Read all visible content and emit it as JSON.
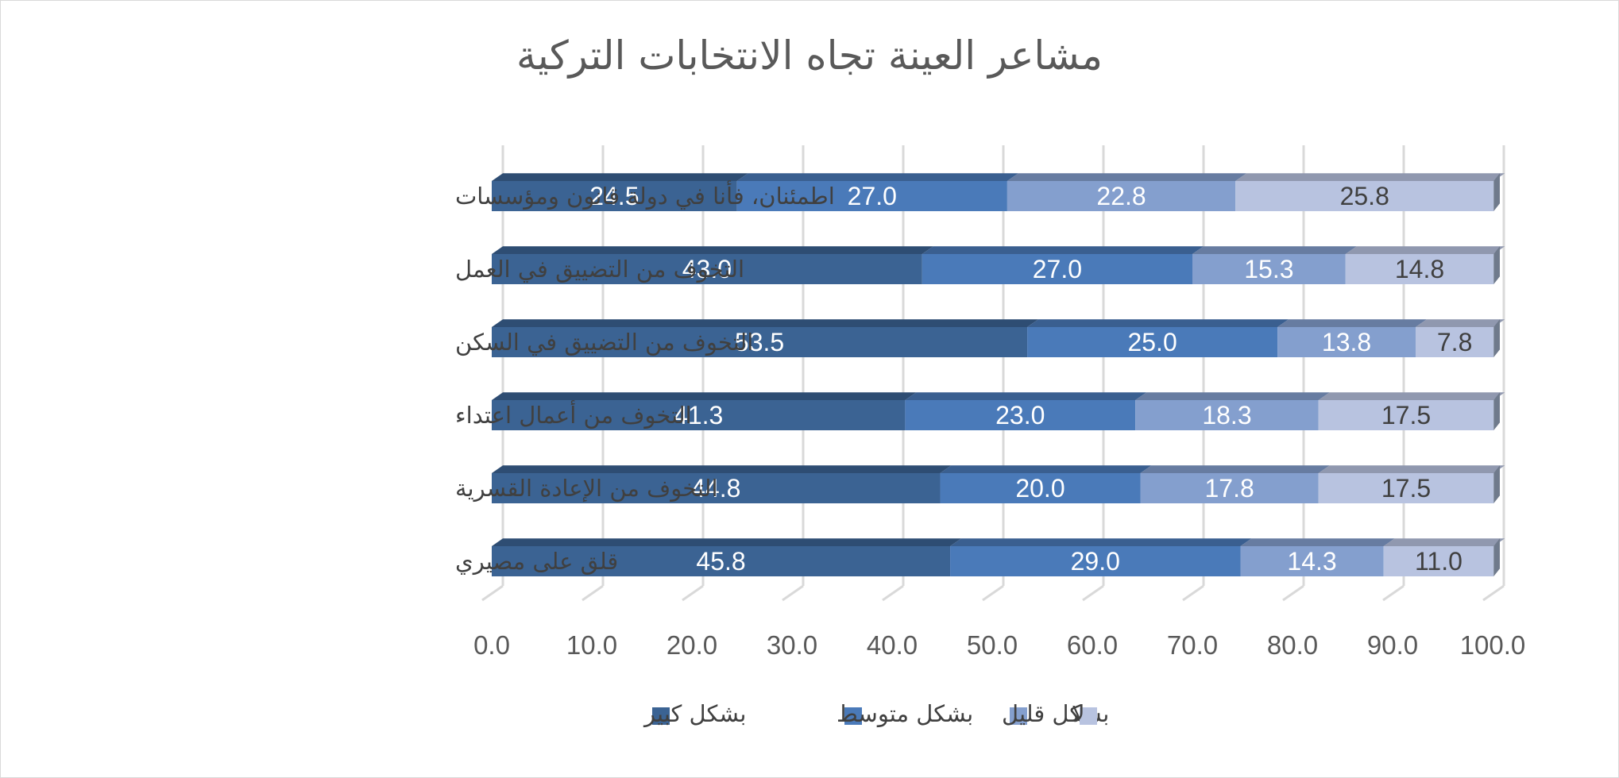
{
  "chart_data": {
    "type": "bar",
    "orientation": "horizontal",
    "stacked": true,
    "title": "مشاعر العينة تجاه الانتخابات التركية",
    "categories": [
      "اطمئنان، فأنا في دولة قانون ومؤسسات",
      "التخوف من التضييق في العمل",
      "التخوف من التضييق في السكن",
      "التخوف من أعمال اعتداء",
      "التخوف من الإعادة القسرية",
      "قلق على مصيري"
    ],
    "series": [
      {
        "name": "بشكل كبير",
        "color": "#3b6393",
        "label_color": "#ffffff",
        "values": [
          24.5,
          43.0,
          53.5,
          41.3,
          44.8,
          45.8
        ]
      },
      {
        "name": "بشكل متوسط",
        "color": "#4a7ab9",
        "label_color": "#ffffff",
        "values": [
          27.0,
          27.0,
          25.0,
          23.0,
          20.0,
          29.0
        ]
      },
      {
        "name": "بشكل قليل",
        "color": "#849fce",
        "label_color": "#ffffff",
        "values": [
          22.8,
          15.3,
          13.8,
          18.3,
          17.8,
          14.3
        ]
      },
      {
        "name": "لا",
        "color": "#b8c3e0",
        "label_color": "#404040",
        "values": [
          25.8,
          14.8,
          7.8,
          17.5,
          17.5,
          11.0
        ]
      }
    ],
    "value_labels": [
      [
        "24.5",
        "43.0",
        "53.5",
        "41.3",
        "44.8",
        "45.8"
      ],
      [
        "27.0",
        "27.0",
        "25.0",
        "23.0",
        "20.0",
        "29.0"
      ],
      [
        "22.8",
        "15.3",
        "13.8",
        "18.3",
        "17.8",
        "14.3"
      ],
      [
        "25.8",
        "14.8",
        "7.8",
        "17.5",
        "17.5",
        "11.0"
      ]
    ],
    "x_ticks": [
      "0.0",
      "10.0",
      "20.0",
      "30.0",
      "40.0",
      "50.0",
      "60.0",
      "70.0",
      "80.0",
      "90.0",
      "100.0"
    ],
    "xlim": [
      0,
      100
    ],
    "xlabel": "",
    "ylabel": "",
    "grid": true,
    "legend_position": "bottom",
    "three_d": true
  }
}
